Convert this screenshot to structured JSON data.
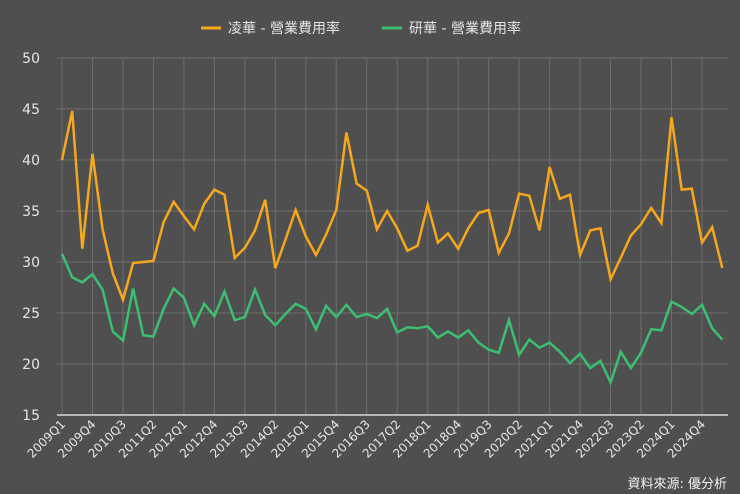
{
  "chart_data": {
    "type": "line",
    "title": "",
    "xlabel": "",
    "ylabel": "",
    "ylim": [
      15,
      50
    ],
    "yticks": [
      15,
      20,
      25,
      30,
      35,
      40,
      45,
      50
    ],
    "grid": true,
    "legend_position": "top",
    "x": [
      "2009Q1",
      "2009Q2",
      "2009Q3",
      "2009Q4",
      "2010Q1",
      "2010Q2",
      "2010Q3",
      "2010Q4",
      "2011Q1",
      "2011Q2",
      "2011Q3",
      "2011Q4",
      "2012Q1",
      "2012Q2",
      "2012Q3",
      "2012Q4",
      "2013Q1",
      "2013Q2",
      "2013Q3",
      "2013Q4",
      "2014Q1",
      "2014Q2",
      "2014Q3",
      "2014Q4",
      "2015Q1",
      "2015Q2",
      "2015Q3",
      "2015Q4",
      "2016Q1",
      "2016Q2",
      "2016Q3",
      "2016Q4",
      "2017Q1",
      "2017Q2",
      "2017Q3",
      "2017Q4",
      "2018Q1",
      "2018Q2",
      "2018Q3",
      "2018Q4",
      "2019Q1",
      "2019Q2",
      "2019Q3",
      "2019Q4",
      "2020Q1",
      "2020Q2",
      "2020Q3",
      "2020Q4",
      "2021Q1",
      "2021Q2",
      "2021Q3",
      "2021Q4",
      "2022Q1",
      "2022Q2",
      "2022Q3",
      "2022Q4",
      "2023Q1",
      "2023Q2",
      "2023Q3",
      "2023Q4",
      "2024Q1",
      "2024Q2",
      "2024Q3",
      "2024Q4",
      "2025Q1",
      "2025Q2"
    ],
    "xtick_labels": [
      "2009Q1",
      "2009Q4",
      "2010Q3",
      "2011Q2",
      "2012Q1",
      "2012Q4",
      "2013Q3",
      "2014Q2",
      "2015Q1",
      "2015Q4",
      "2016Q3",
      "2017Q2",
      "2018Q1",
      "2018Q4",
      "2019Q3",
      "2020Q2",
      "2021Q1",
      "2021Q4",
      "2022Q3",
      "2023Q2",
      "2024Q1",
      "2024Q4"
    ],
    "series": [
      {
        "name": "凌華 - 營業費用率",
        "color": "#f5a81c",
        "values": [
          40.0,
          44.8,
          31.3,
          40.6,
          33.2,
          28.9,
          26.3,
          29.9,
          30.0,
          30.1,
          33.9,
          35.9,
          34.5,
          33.2,
          35.7,
          37.1,
          36.6,
          30.4,
          31.4,
          33.1,
          36.1,
          29.4,
          32.2,
          35.1,
          32.5,
          30.7,
          32.7,
          35.1,
          42.7,
          37.7,
          37.0,
          33.2,
          35.0,
          33.3,
          31.1,
          31.6,
          35.6,
          31.9,
          32.8,
          31.3,
          33.3,
          34.8,
          35.1,
          30.9,
          32.8,
          36.7,
          36.5,
          33.1,
          39.3,
          36.2,
          36.6,
          30.7,
          33.1,
          33.3,
          28.3,
          30.4,
          32.6,
          33.7,
          35.3,
          33.8,
          44.2,
          37.1,
          37.2,
          31.9,
          33.4,
          29.4
        ]
      },
      {
        "name": "研華 - 營業費用率",
        "color": "#3dbf72",
        "values": [
          30.8,
          28.5,
          28.0,
          28.8,
          27.3,
          23.2,
          22.3,
          27.4,
          22.8,
          22.7,
          25.4,
          27.4,
          26.5,
          23.8,
          25.9,
          24.7,
          27.1,
          24.3,
          24.6,
          27.3,
          24.8,
          23.8,
          24.9,
          25.9,
          25.4,
          23.4,
          25.7,
          24.6,
          25.8,
          24.6,
          24.9,
          24.5,
          25.4,
          23.1,
          23.6,
          23.5,
          23.7,
          22.6,
          23.2,
          22.6,
          23.3,
          22.1,
          21.4,
          21.1,
          24.3,
          20.9,
          22.4,
          21.6,
          22.1,
          21.2,
          20.1,
          21.0,
          19.6,
          20.3,
          18.2,
          21.2,
          19.6,
          21.1,
          23.4,
          23.3,
          26.1,
          25.6,
          24.9,
          25.8,
          23.5,
          22.4
        ]
      }
    ]
  },
  "legend": {
    "items": [
      "凌華 - 營業費用率",
      "研華 - 營業費用率"
    ]
  },
  "source": "資料來源: 優分析"
}
